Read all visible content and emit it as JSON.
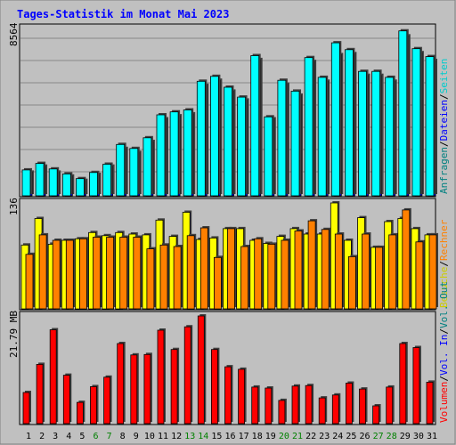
{
  "title": "Tages-Statistik im Monat Mai 2023",
  "colors": {
    "background": "#c0c0c0",
    "title": "#0000ff",
    "grid": "#888888",
    "hits": "#00ffff",
    "files": "#0000ff",
    "pages": "#00cccc",
    "visits": "#ffff00",
    "sites": "#ff8000",
    "volume": "#ff0000",
    "weekend_day": "#008000",
    "weekday": "#000000"
  },
  "chart_data": [
    {
      "type": "bar",
      "name": "hits-files-pages",
      "ymax_label": "8564",
      "ymax": 8564,
      "right_labels": [
        {
          "text": "Anfragen",
          "color": "#008080"
        },
        {
          "text": "Dateien",
          "color": "#0000ff"
        },
        {
          "text": "Seiten",
          "color": "#00cccc"
        }
      ],
      "series": [
        {
          "key": "hits",
          "values": [
            1310,
            1640,
            1360,
            1110,
            870,
            1180,
            1600,
            2600,
            2400,
            2940,
            4100,
            4250,
            4350,
            5800,
            6050,
            5500,
            5000,
            7100,
            4000,
            5850,
            5300,
            7000,
            6000,
            7750,
            7400,
            6300,
            6300,
            6000,
            8350,
            7450,
            7050
          ]
        },
        {
          "key": "files",
          "values": [
            1200,
            1500,
            1200,
            1000,
            780,
            1080,
            1500,
            2400,
            2200,
            2750,
            3900,
            4050,
            4150,
            5600,
            5850,
            5300,
            4850,
            6900,
            3900,
            5650,
            5100,
            6800,
            5800,
            7150,
            7200,
            6100,
            6100,
            5800,
            8100,
            7250,
            6850
          ]
        }
      ],
      "x": [
        1,
        2,
        3,
        4,
        5,
        6,
        7,
        8,
        9,
        10,
        11,
        12,
        13,
        14,
        15,
        16,
        17,
        18,
        19,
        20,
        21,
        22,
        23,
        24,
        25,
        26,
        27,
        28,
        29,
        30,
        31
      ]
    },
    {
      "type": "bar",
      "name": "visits-sites",
      "ymax_label": "136",
      "ymax": 136,
      "right_labels": [
        {
          "text": "Besuche",
          "color": "#cccc00"
        },
        {
          "text": "Rechner",
          "color": "#ff8000"
        }
      ],
      "series": [
        {
          "key": "visits",
          "values": [
            82,
            116,
            83,
            88,
            90,
            98,
            94,
            98,
            96,
            95,
            114,
            93,
            124,
            89,
            91,
            103,
            103,
            88,
            84,
            93,
            103,
            96,
            96,
            136,
            88,
            117,
            79,
            112,
            116,
            103,
            95
          ]
        },
        {
          "key": "sites",
          "values": [
            70,
            95,
            88,
            88,
            90,
            92,
            92,
            92,
            92,
            77,
            82,
            80,
            94,
            104,
            66,
            103,
            80,
            90,
            83,
            88,
            100,
            113,
            102,
            96,
            67,
            96,
            79,
            95,
            127,
            86,
            95
          ]
        }
      ],
      "x": [
        1,
        2,
        3,
        4,
        5,
        6,
        7,
        8,
        9,
        10,
        11,
        12,
        13,
        14,
        15,
        16,
        17,
        18,
        19,
        20,
        21,
        22,
        23,
        24,
        25,
        26,
        27,
        28,
        29,
        30,
        31
      ]
    },
    {
      "type": "bar",
      "name": "volume",
      "ymax_label": "21.79 MB",
      "ymax": 21.79,
      "unit": "MB",
      "right_labels": [
        {
          "text": "Volumen",
          "color": "#ff0000"
        },
        {
          "text": "Vol. In",
          "color": "#0000ff"
        },
        {
          "text": "Vol. Out",
          "color": "#008080"
        }
      ],
      "series": [
        {
          "key": "volume",
          "values": [
            6.3,
            12.0,
            19.0,
            9.8,
            4.3,
            7.5,
            9.4,
            16.2,
            13.9,
            14.0,
            18.9,
            15.0,
            19.6,
            21.79,
            15.0,
            11.5,
            11.0,
            7.4,
            7.2,
            4.7,
            7.6,
            7.7,
            5.2,
            5.8,
            8.2,
            7.0,
            3.6,
            7.4,
            16.2,
            15.4,
            8.4
          ]
        }
      ],
      "x": [
        1,
        2,
        3,
        4,
        5,
        6,
        7,
        8,
        9,
        10,
        11,
        12,
        13,
        14,
        15,
        16,
        17,
        18,
        19,
        20,
        21,
        22,
        23,
        24,
        25,
        26,
        27,
        28,
        29,
        30,
        31
      ]
    }
  ],
  "x_axis": {
    "labels": [
      "1",
      "2",
      "3",
      "4",
      "5",
      "6",
      "7",
      "8",
      "9",
      "10",
      "11",
      "12",
      "13",
      "14",
      "15",
      "16",
      "17",
      "18",
      "19",
      "20",
      "21",
      "22",
      "23",
      "24",
      "25",
      "26",
      "27",
      "28",
      "29",
      "30",
      "31"
    ],
    "weekend": [
      6,
      7,
      13,
      14,
      20,
      21,
      27,
      28
    ]
  }
}
